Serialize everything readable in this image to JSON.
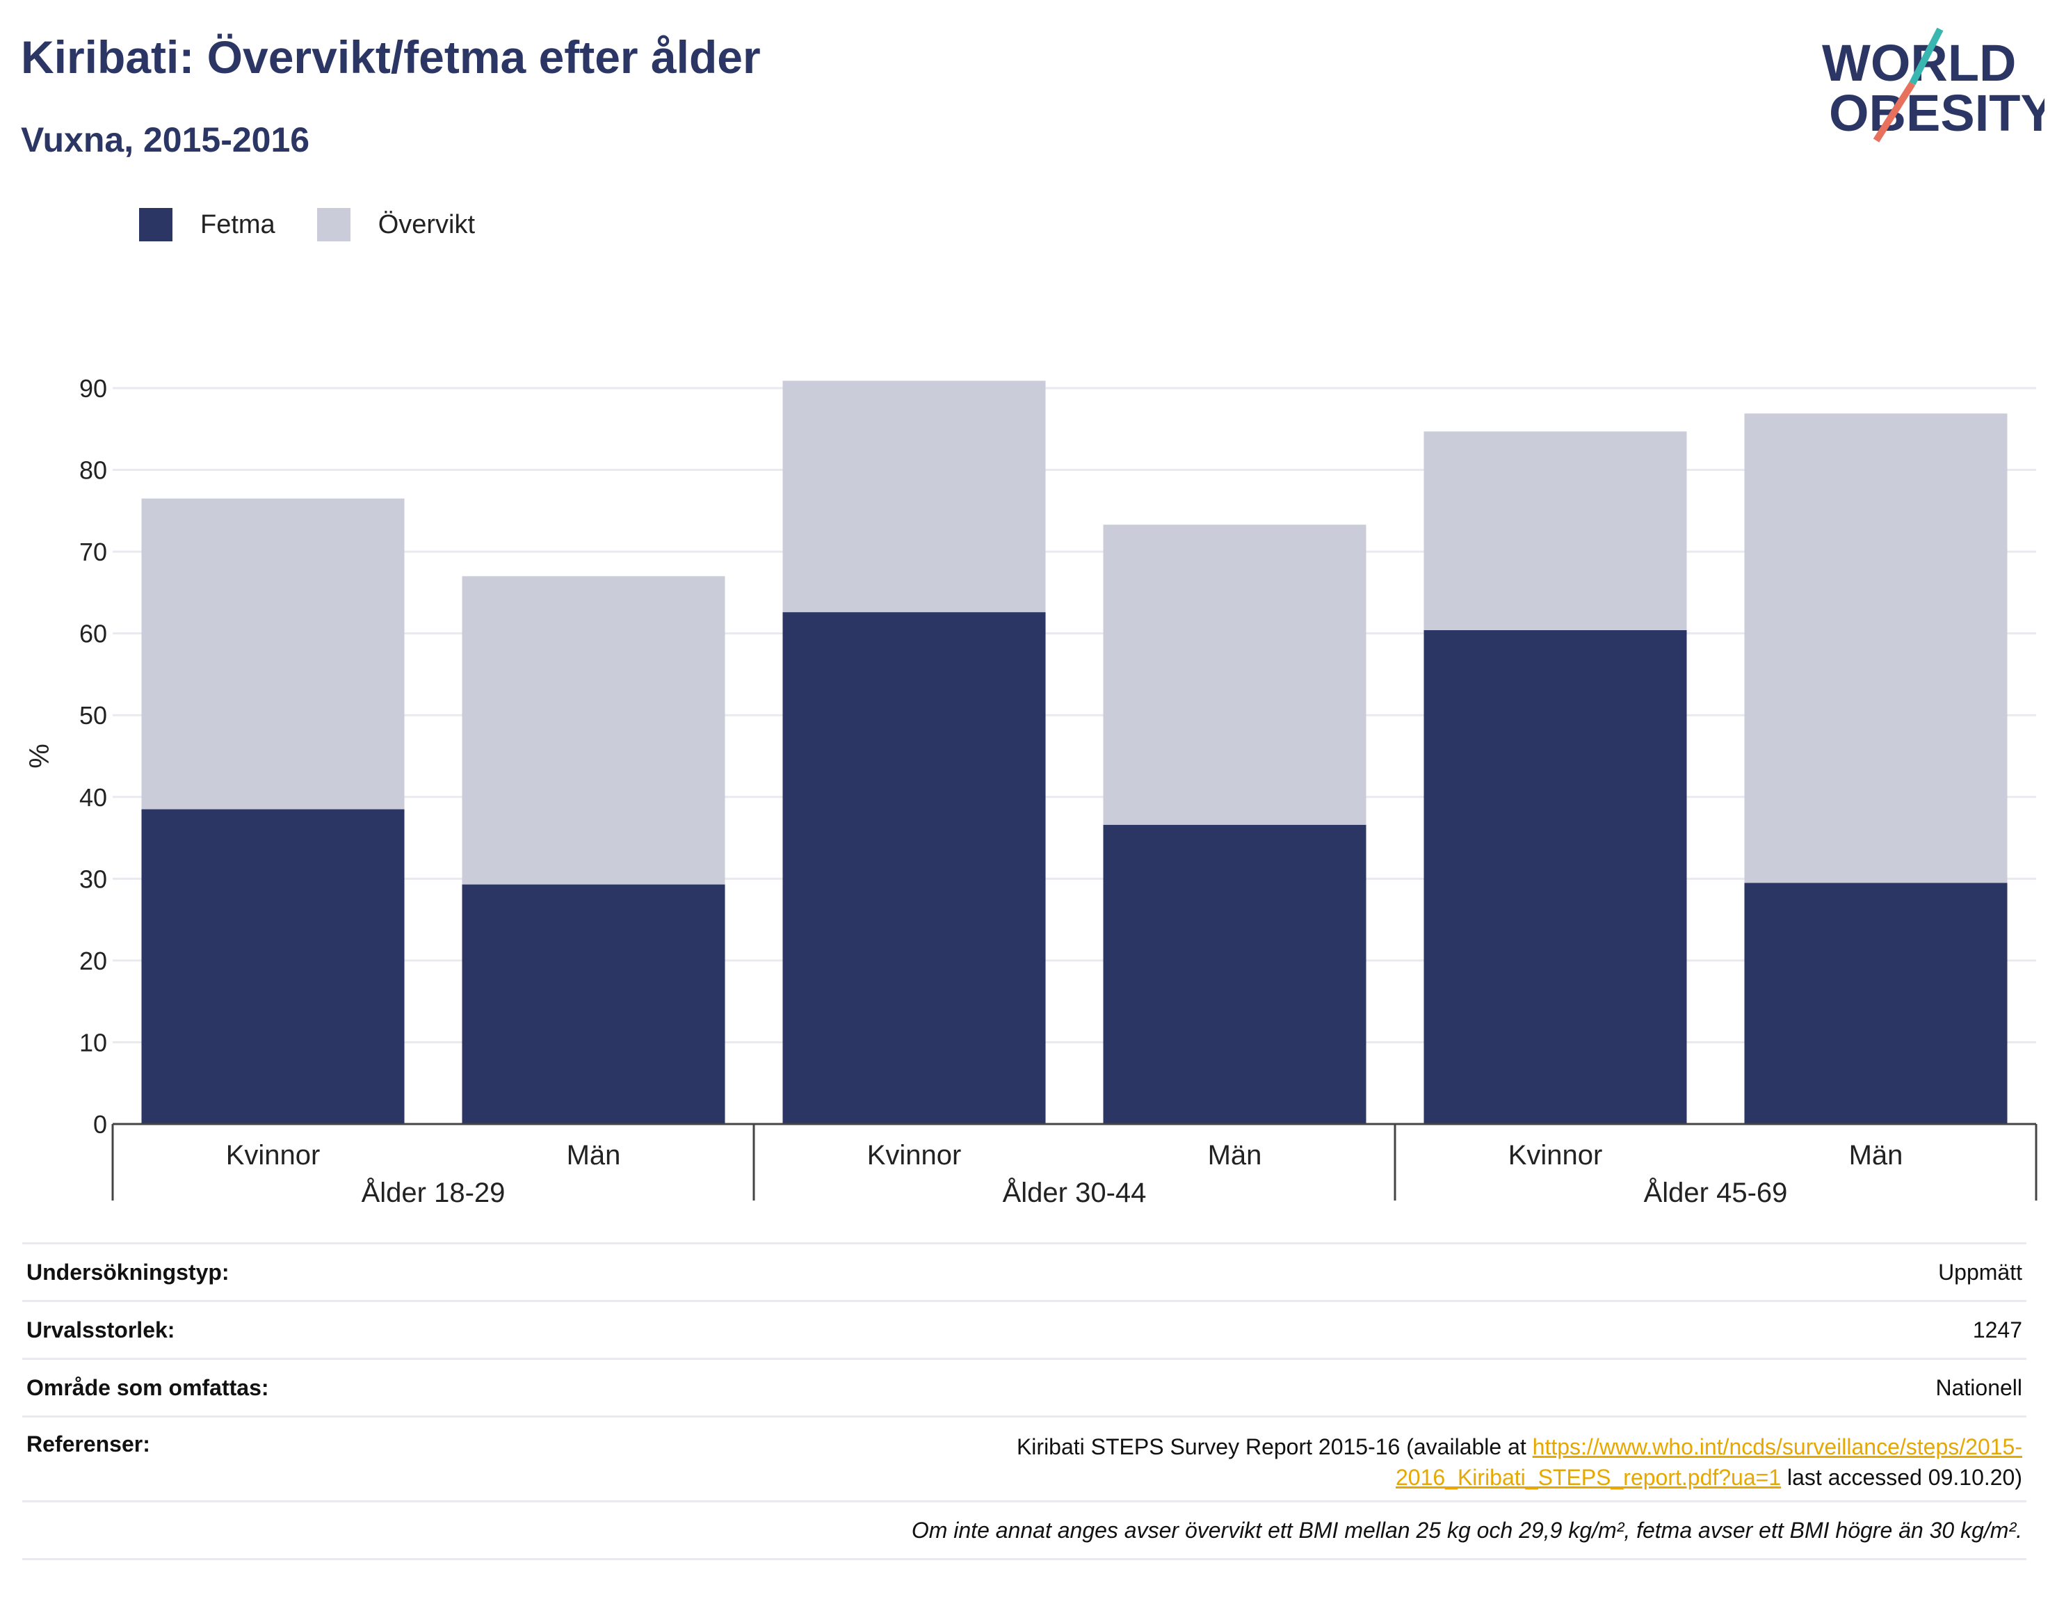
{
  "header": {
    "title": "Kiribati: Övervikt/fetma efter ålder",
    "subtitle": "Vuxna, 2015-2016"
  },
  "logo": {
    "line1": "WORLD",
    "line2": "OBESITY"
  },
  "colors": {
    "fetma": "#2b3664",
    "overvikt": "#cacdd9",
    "heading": "#2b3664",
    "link": "#e6a800",
    "grid": "#e8eaf0",
    "axis": "#444444"
  },
  "chart_data": {
    "type": "bar",
    "stacked": true,
    "ylabel": "%",
    "ylim": [
      0,
      90
    ],
    "yticks": [
      0,
      10,
      20,
      30,
      40,
      50,
      60,
      70,
      80,
      90
    ],
    "grid": true,
    "legend_position": "top-left",
    "groups": [
      {
        "label": "Ålder 18-29",
        "categories": [
          "Kvinnor",
          "Män"
        ]
      },
      {
        "label": "Ålder 30-44",
        "categories": [
          "Kvinnor",
          "Män"
        ]
      },
      {
        "label": "Ålder 45-69",
        "categories": [
          "Kvinnor",
          "Män"
        ]
      }
    ],
    "categories": [
      "Kvinnor",
      "Män",
      "Kvinnor",
      "Män",
      "Kvinnor",
      "Män"
    ],
    "series": [
      {
        "name": "Fetma",
        "values": [
          38.5,
          29.3,
          62.6,
          36.6,
          60.4,
          29.5
        ]
      },
      {
        "name": "Övervikt",
        "values": [
          38.0,
          37.7,
          28.3,
          36.7,
          24.3,
          57.4
        ]
      }
    ]
  },
  "info": {
    "rows": [
      {
        "key": "Undersökningstyp:",
        "value": "Uppmätt"
      },
      {
        "key": "Urvalsstorlek:",
        "value": "1247"
      },
      {
        "key": "Område som omfattas:",
        "value": "Nationell"
      }
    ],
    "references_key": "Referenser:",
    "references_prefix": "Kiribati STEPS Survey Report 2015-16 (available at",
    "references_link": "https://www.who.int/ncds/surveillance/steps/2015-2016_Kiribati_STEPS_report.pdf?ua=1",
    "references_suffix": "last accessed 09.10.20)",
    "note": "Om inte annat anges avser övervikt ett BMI mellan 25 kg och 29,9 kg/m², fetma avser ett BMI högre än 30 kg/m²."
  }
}
